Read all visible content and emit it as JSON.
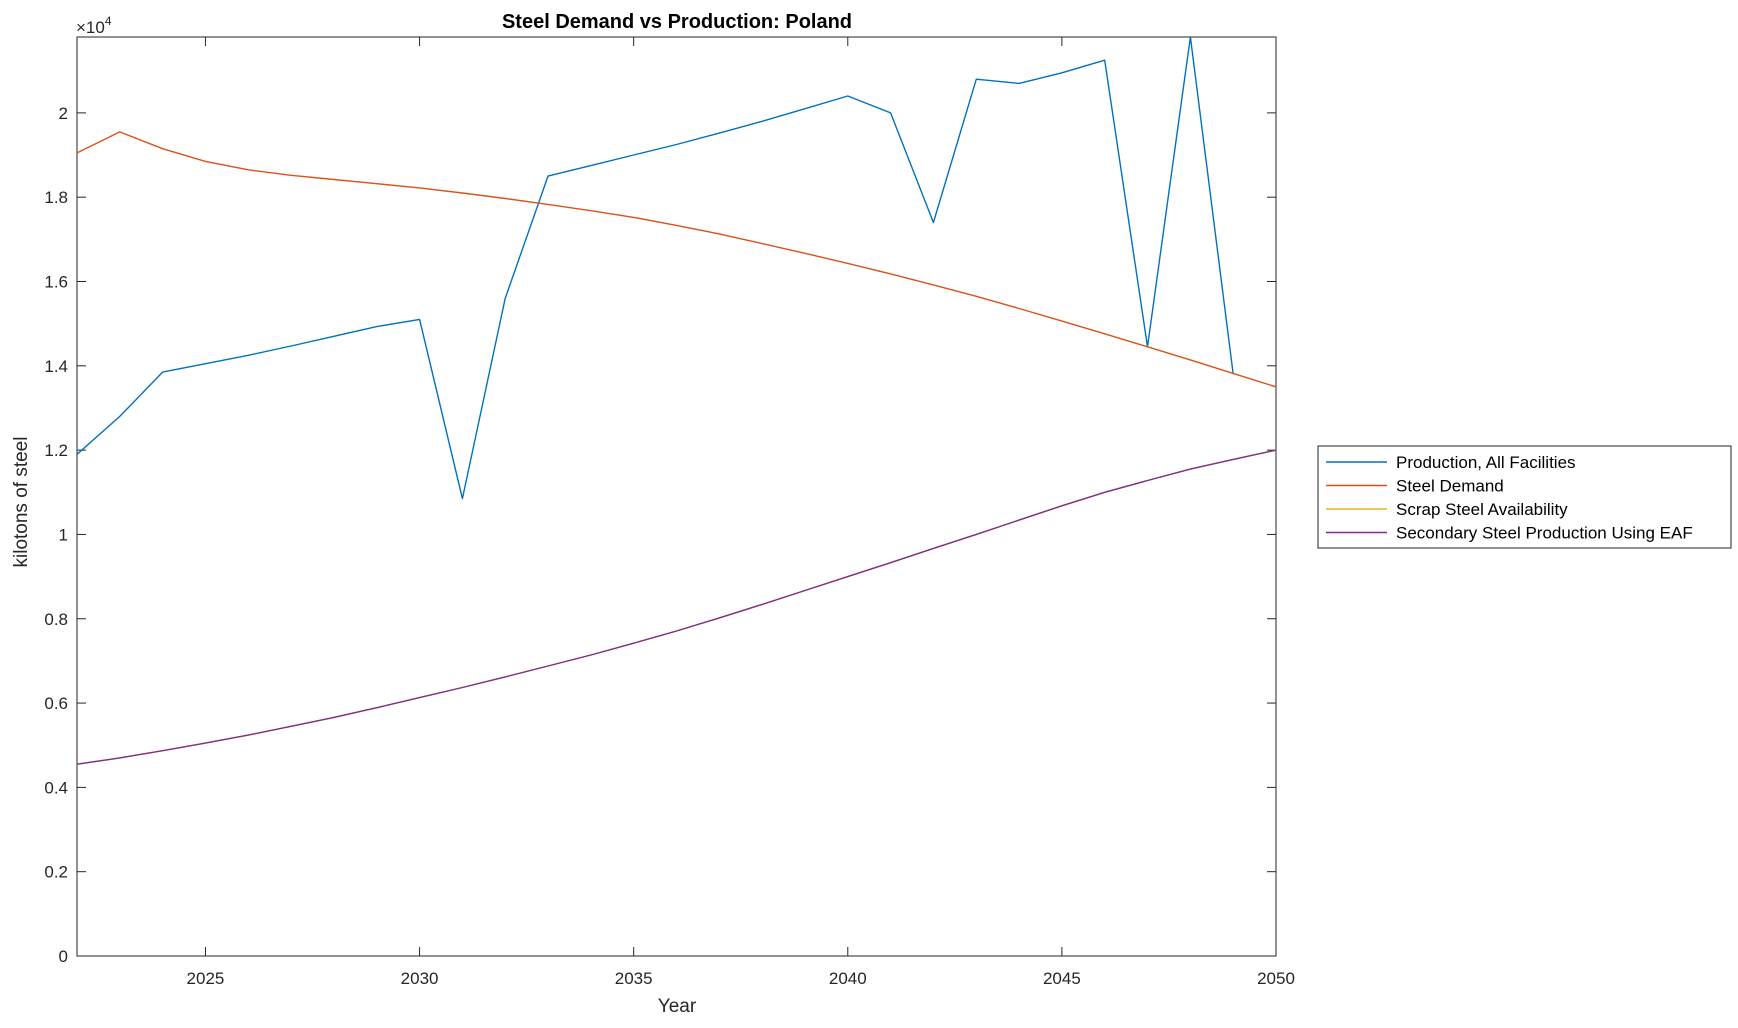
{
  "chart_data": {
    "type": "line",
    "title": "Steel Demand vs Production: Poland",
    "xlabel": "Year",
    "ylabel": "kilotons of steel",
    "exponent_label": "×10",
    "exponent_power": "4",
    "xlim": [
      2022,
      2050
    ],
    "ylim": [
      0,
      2.18
    ],
    "y_scale_factor": 10000,
    "xticks": [
      2025,
      2030,
      2035,
      2040,
      2045,
      2050
    ],
    "xtick_labels": [
      "2025",
      "2030",
      "2035",
      "2040",
      "2045",
      "2050"
    ],
    "yticks": [
      0,
      0.2,
      0.4,
      0.6,
      0.8,
      1,
      1.2,
      1.4,
      1.6,
      1.8,
      2
    ],
    "ytick_labels": [
      "0",
      "0.2",
      "0.4",
      "0.6",
      "0.8",
      "1",
      "1.2",
      "1.4",
      "1.6",
      "1.8",
      "2"
    ],
    "grid": false,
    "legend_position": "outside-right",
    "x": [
      2022,
      2023,
      2024,
      2025,
      2026,
      2027,
      2028,
      2029,
      2030,
      2031,
      2032,
      2033,
      2034,
      2035,
      2036,
      2037,
      2038,
      2039,
      2040,
      2041,
      2042,
      2043,
      2044,
      2045,
      2046,
      2047,
      2048,
      2049,
      2050
    ],
    "series": [
      {
        "name": "Production, All Facilities",
        "color": "#0072BD",
        "values": [
          1.19,
          1.28,
          1.385,
          1.405,
          1.425,
          1.447,
          1.47,
          1.493,
          1.51,
          1.085,
          1.56,
          1.85,
          1.875,
          1.9,
          1.925,
          1.952,
          1.98,
          2.01,
          2.04,
          2.0,
          1.74,
          2.08,
          2.07,
          2.095,
          2.125,
          1.445,
          2.18,
          1.38,
          null
        ]
      },
      {
        "name": "Steel Demand",
        "color": "#D95319",
        "values": [
          1.905,
          1.955,
          1.915,
          1.885,
          1.865,
          1.852,
          1.842,
          1.832,
          1.822,
          1.81,
          1.797,
          1.783,
          1.768,
          1.752,
          1.733,
          1.713,
          1.69,
          1.667,
          1.643,
          1.618,
          1.592,
          1.565,
          1.536,
          1.506,
          1.476,
          1.445,
          1.414,
          1.382,
          1.35
        ]
      },
      {
        "name": "Scrap Steel Availability",
        "color": "#EDB120",
        "values": [
          0.455,
          0.47,
          0.487,
          0.505,
          0.524,
          0.545,
          0.566,
          0.589,
          0.613,
          0.637,
          0.662,
          0.688,
          0.714,
          0.742,
          0.771,
          0.802,
          0.834,
          0.867,
          0.9,
          0.933,
          0.967,
          1.0,
          1.034,
          1.068,
          1.1,
          1.128,
          1.155,
          1.178,
          1.2
        ]
      },
      {
        "name": "Secondary Steel Production Using EAF",
        "color": "#7E2F8E",
        "values": [
          0.455,
          0.47,
          0.487,
          0.505,
          0.524,
          0.545,
          0.566,
          0.589,
          0.613,
          0.637,
          0.662,
          0.688,
          0.714,
          0.742,
          0.771,
          0.802,
          0.834,
          0.867,
          0.9,
          0.933,
          0.967,
          1.0,
          1.034,
          1.068,
          1.1,
          1.128,
          1.155,
          1.178,
          1.2
        ]
      }
    ]
  }
}
